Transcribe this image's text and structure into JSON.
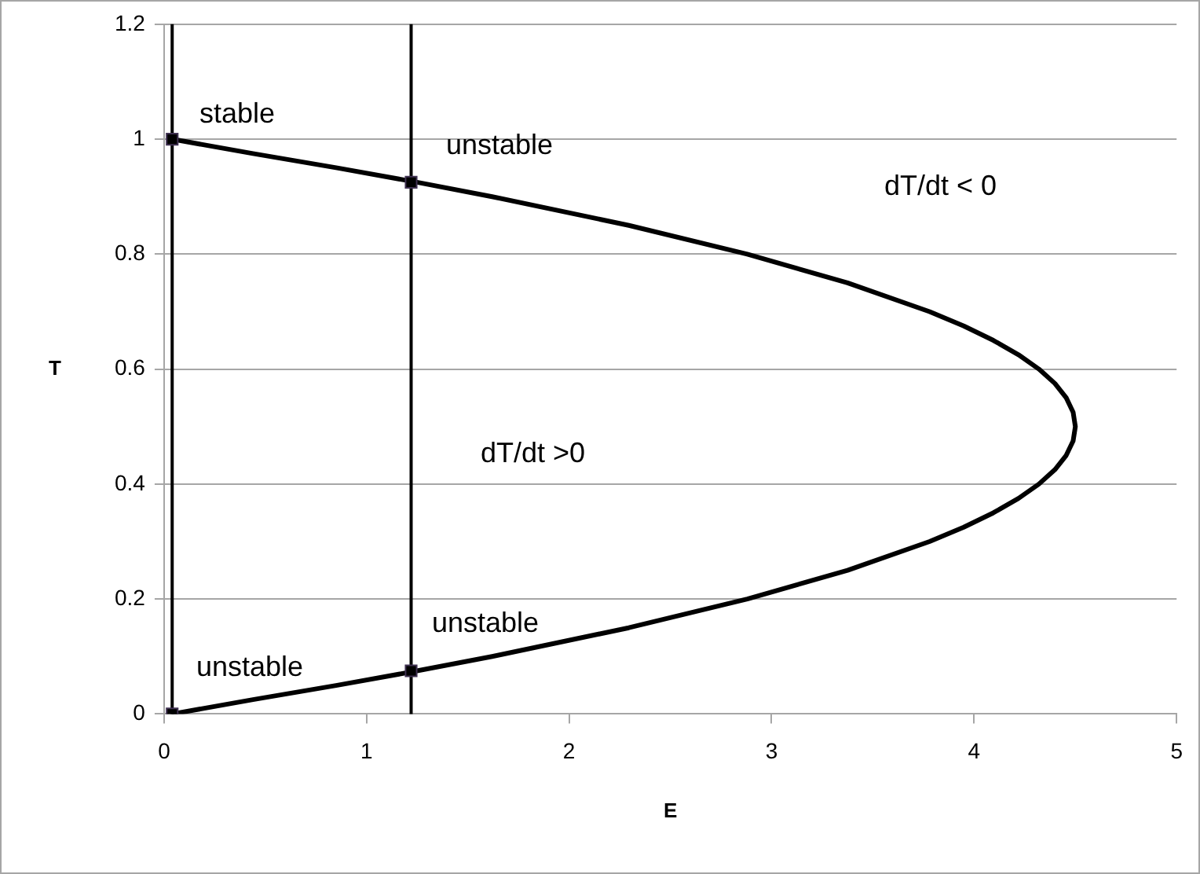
{
  "chart_data": {
    "type": "line",
    "xlabel": "E",
    "ylabel": "T",
    "xlim": [
      0,
      5
    ],
    "xticks": [
      0,
      1,
      2,
      3,
      4,
      5
    ],
    "ylim": [
      0,
      1.2
    ],
    "yticks": [
      0,
      0.2,
      0.4,
      0.6,
      0.8,
      1,
      1.2
    ],
    "grid": "y",
    "legend": false,
    "series": [
      {
        "color": "#000000",
        "marker": "none",
        "x": [
          0.04,
          0.439,
          0.855,
          1.249,
          1.62,
          2.295,
          2.88,
          3.375,
          3.78,
          3.949,
          4.095,
          4.219,
          4.32,
          4.399,
          4.455,
          4.489,
          4.5,
          4.489,
          4.455,
          4.399,
          4.32,
          4.219,
          4.095,
          3.949,
          3.78,
          3.375,
          2.88,
          2.295,
          1.62,
          1.249,
          0.855,
          0.439,
          0.04
        ],
        "values": [
          0,
          0.025,
          0.05,
          0.075,
          0.1,
          0.15,
          0.2,
          0.25,
          0.3,
          0.325,
          0.35,
          0.375,
          0.4,
          0.425,
          0.45,
          0.475,
          0.5,
          0.525,
          0.55,
          0.575,
          0.6,
          0.625,
          0.65,
          0.675,
          0.7,
          0.75,
          0.8,
          0.85,
          0.9,
          0.925,
          0.95,
          0.975,
          1
        ]
      },
      {
        "type": "scatter",
        "color": "#000000",
        "marker": "square",
        "x": [
          0.04,
          0.04,
          1.22,
          1.22
        ],
        "values": [
          1,
          0,
          0.925,
          0.075
        ]
      }
    ],
    "ref_lines": [
      {
        "axis": "x",
        "value": 0.04,
        "color": "#000000"
      },
      {
        "axis": "x",
        "value": 1.22,
        "color": "#000000"
      }
    ],
    "annotations": [
      "stable",
      "unstable",
      "dT/dt < 0",
      "dT/dt >0",
      "unstable",
      "unstable"
    ]
  }
}
